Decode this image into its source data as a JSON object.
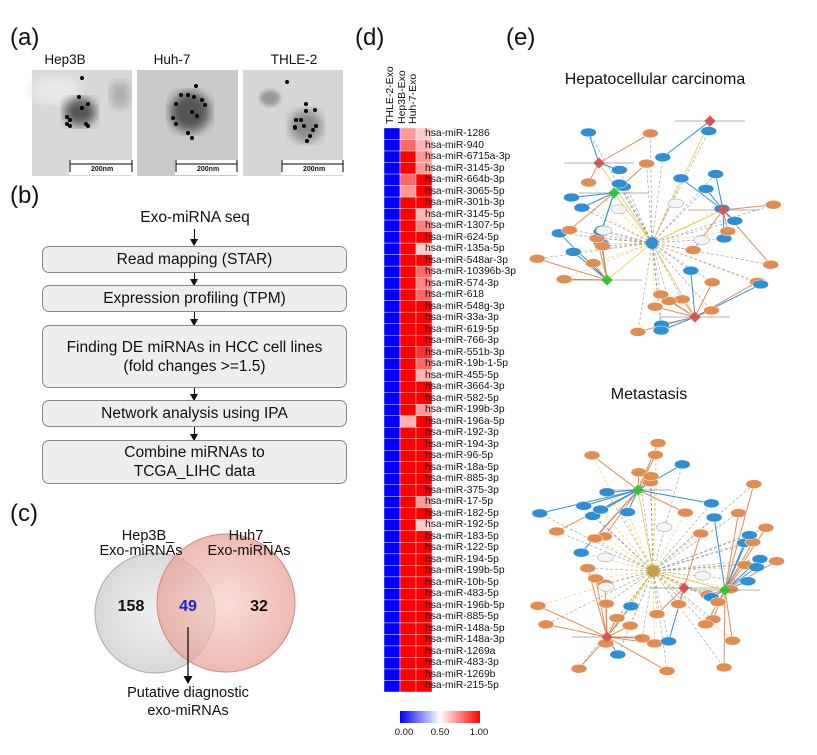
{
  "panels": {
    "a": {
      "label": "(a)",
      "images": [
        {
          "title": "Hep3B",
          "scale_bar": "200nm"
        },
        {
          "title": "Huh-7",
          "scale_bar": "200nm"
        },
        {
          "title": "THLE-2",
          "scale_bar": "200nm"
        }
      ]
    },
    "b": {
      "label": "(b)",
      "start": "Exo-miRNA seq",
      "steps": [
        {
          "line1": "Read mapping (STAR)"
        },
        {
          "line1": "Expression profiling (TPM)"
        },
        {
          "line1": "Finding DE miRNAs in HCC cell lines",
          "line2": "(fold changes >=1.5)"
        },
        {
          "line1": "Network analysis using IPA"
        },
        {
          "line1": "Combine miRNAs to",
          "line2": "TCGA_LIHC data"
        }
      ]
    },
    "c": {
      "label": "(c)",
      "left_set": {
        "line1": "Hep3B_",
        "line2": "Exo-miRNAs",
        "only": "158",
        "color": "#e4e4e4"
      },
      "right_set": {
        "line1": "Huh7_",
        "line2": "Exo-miRNAs",
        "only": "32",
        "color": "#f0b8ae"
      },
      "overlap": {
        "count": "49",
        "color": "#2222cc"
      },
      "annotation": {
        "line1": "Putative diagnostic",
        "line2": "exo-miRNAs"
      }
    },
    "d": {
      "label": "(d)"
    },
    "e": {
      "label": "(e)",
      "networks": [
        {
          "title": "Hepatocellular carcinoma"
        },
        {
          "title": "Metastasis"
        }
      ],
      "colors": {
        "down_node": "#2e8fd6",
        "up_node": "#e38c52",
        "hub_green": "#33cc33",
        "hub_red": "#e05555",
        "neutral_node": "#f4f4f4"
      }
    }
  },
  "chart_data": {
    "type": "heatmap",
    "columns": [
      "THLE-2-Exo",
      "Hep3B-Exo",
      "Huh-7-Exo"
    ],
    "rows": [
      "hsa-miR-1286",
      "hsa-miR-940",
      "hsa-miR-6715a-3p",
      "hsa-miR-3145-3p",
      "hsa-miR-664b-3p",
      "hsa-miR-3065-5p",
      "hsa-miR-301b-3p",
      "hsa-miR-3145-5p",
      "hsa-miR-1307-5p",
      "hsa-miR-624-5p",
      "hsa-miR-135a-5p",
      "hsa-miR-548ar-3p",
      "hsa-miR-10396b-3p",
      "hsa-miR-574-3p",
      "hsa-miR-618",
      "hsa-miR-548g-3p",
      "hsa-miR-33a-3p",
      "hsa-miR-619-5p",
      "hsa-miR-766-3p",
      "hsa-miR-551b-3p",
      "hsa-miR-19b-1-5p",
      "hsa-miR-455-5p",
      "hsa-miR-3664-3p",
      "hsa-miR-582-5p",
      "hsa-miR-199b-3p",
      "hsa-miR-196a-5p",
      "hsa-miR-192-3p",
      "hsa-miR-194-3p",
      "hsa-miR-96-5p",
      "hsa-miR-18a-5p",
      "hsa-miR-885-3p",
      "hsa-miR-375-3p",
      "hsa-miR-17-5p",
      "hsa-miR-182-5p",
      "hsa-miR-192-5p",
      "hsa-miR-183-5p",
      "hsa-miR-122-5p",
      "hsa-miR-194-5p",
      "hsa-miR-199b-5p",
      "hsa-miR-10b-5p",
      "hsa-miR-483-5p",
      "hsa-miR-196b-5p",
      "hsa-miR-885-5p",
      "hsa-miR-148a-5p",
      "hsa-miR-148a-3p",
      "hsa-miR-1269a",
      "hsa-miR-483-3p",
      "hsa-miR-1269b",
      "hsa-miR-215-5p"
    ],
    "values": [
      [
        0,
        0.7,
        0.6
      ],
      [
        0,
        0.8,
        0.65
      ],
      [
        0,
        1,
        0.7
      ],
      [
        0,
        1,
        0.7
      ],
      [
        0,
        0.8,
        1
      ],
      [
        0,
        0.7,
        1
      ],
      [
        0,
        1,
        1
      ],
      [
        0,
        1,
        0.65
      ],
      [
        0,
        1,
        0.75
      ],
      [
        0,
        1,
        1
      ],
      [
        0,
        1,
        0.6
      ],
      [
        0,
        1,
        1
      ],
      [
        0,
        1,
        0.8
      ],
      [
        0,
        1,
        0.75
      ],
      [
        0,
        1,
        0.8
      ],
      [
        0,
        1,
        1
      ],
      [
        0,
        1,
        1
      ],
      [
        0,
        1,
        1
      ],
      [
        0,
        1,
        1
      ],
      [
        0,
        1,
        0.9
      ],
      [
        0,
        1,
        0.8
      ],
      [
        0,
        1,
        0.65
      ],
      [
        0,
        1,
        1
      ],
      [
        0,
        1,
        1
      ],
      [
        0,
        1,
        0.7
      ],
      [
        0,
        0.65,
        1
      ],
      [
        0,
        1,
        1
      ],
      [
        0,
        1,
        1
      ],
      [
        0,
        1,
        1
      ],
      [
        0,
        1,
        1
      ],
      [
        0,
        1,
        1
      ],
      [
        0,
        1,
        1
      ],
      [
        0,
        1,
        0.7
      ],
      [
        0,
        1,
        1
      ],
      [
        0,
        1,
        0.6
      ],
      [
        0,
        1,
        1
      ],
      [
        0,
        1,
        1
      ],
      [
        0,
        1,
        1
      ],
      [
        0,
        1,
        1
      ],
      [
        0,
        1,
        1
      ],
      [
        0,
        1,
        1
      ],
      [
        0,
        1,
        1
      ],
      [
        0,
        1,
        1
      ],
      [
        0,
        1,
        1
      ],
      [
        0,
        1,
        1
      ],
      [
        0,
        1,
        1
      ],
      [
        0,
        1,
        1
      ],
      [
        0,
        1,
        1
      ],
      [
        0,
        1,
        1
      ]
    ],
    "colorscale": {
      "min": 0,
      "mid": 0.5,
      "max": 1,
      "min_color": "#0000ff",
      "mid_color": "#ffffff",
      "max_color": "#ff0000"
    },
    "colorbar_ticks": [
      "0.00",
      "0.50",
      "1.00"
    ]
  }
}
